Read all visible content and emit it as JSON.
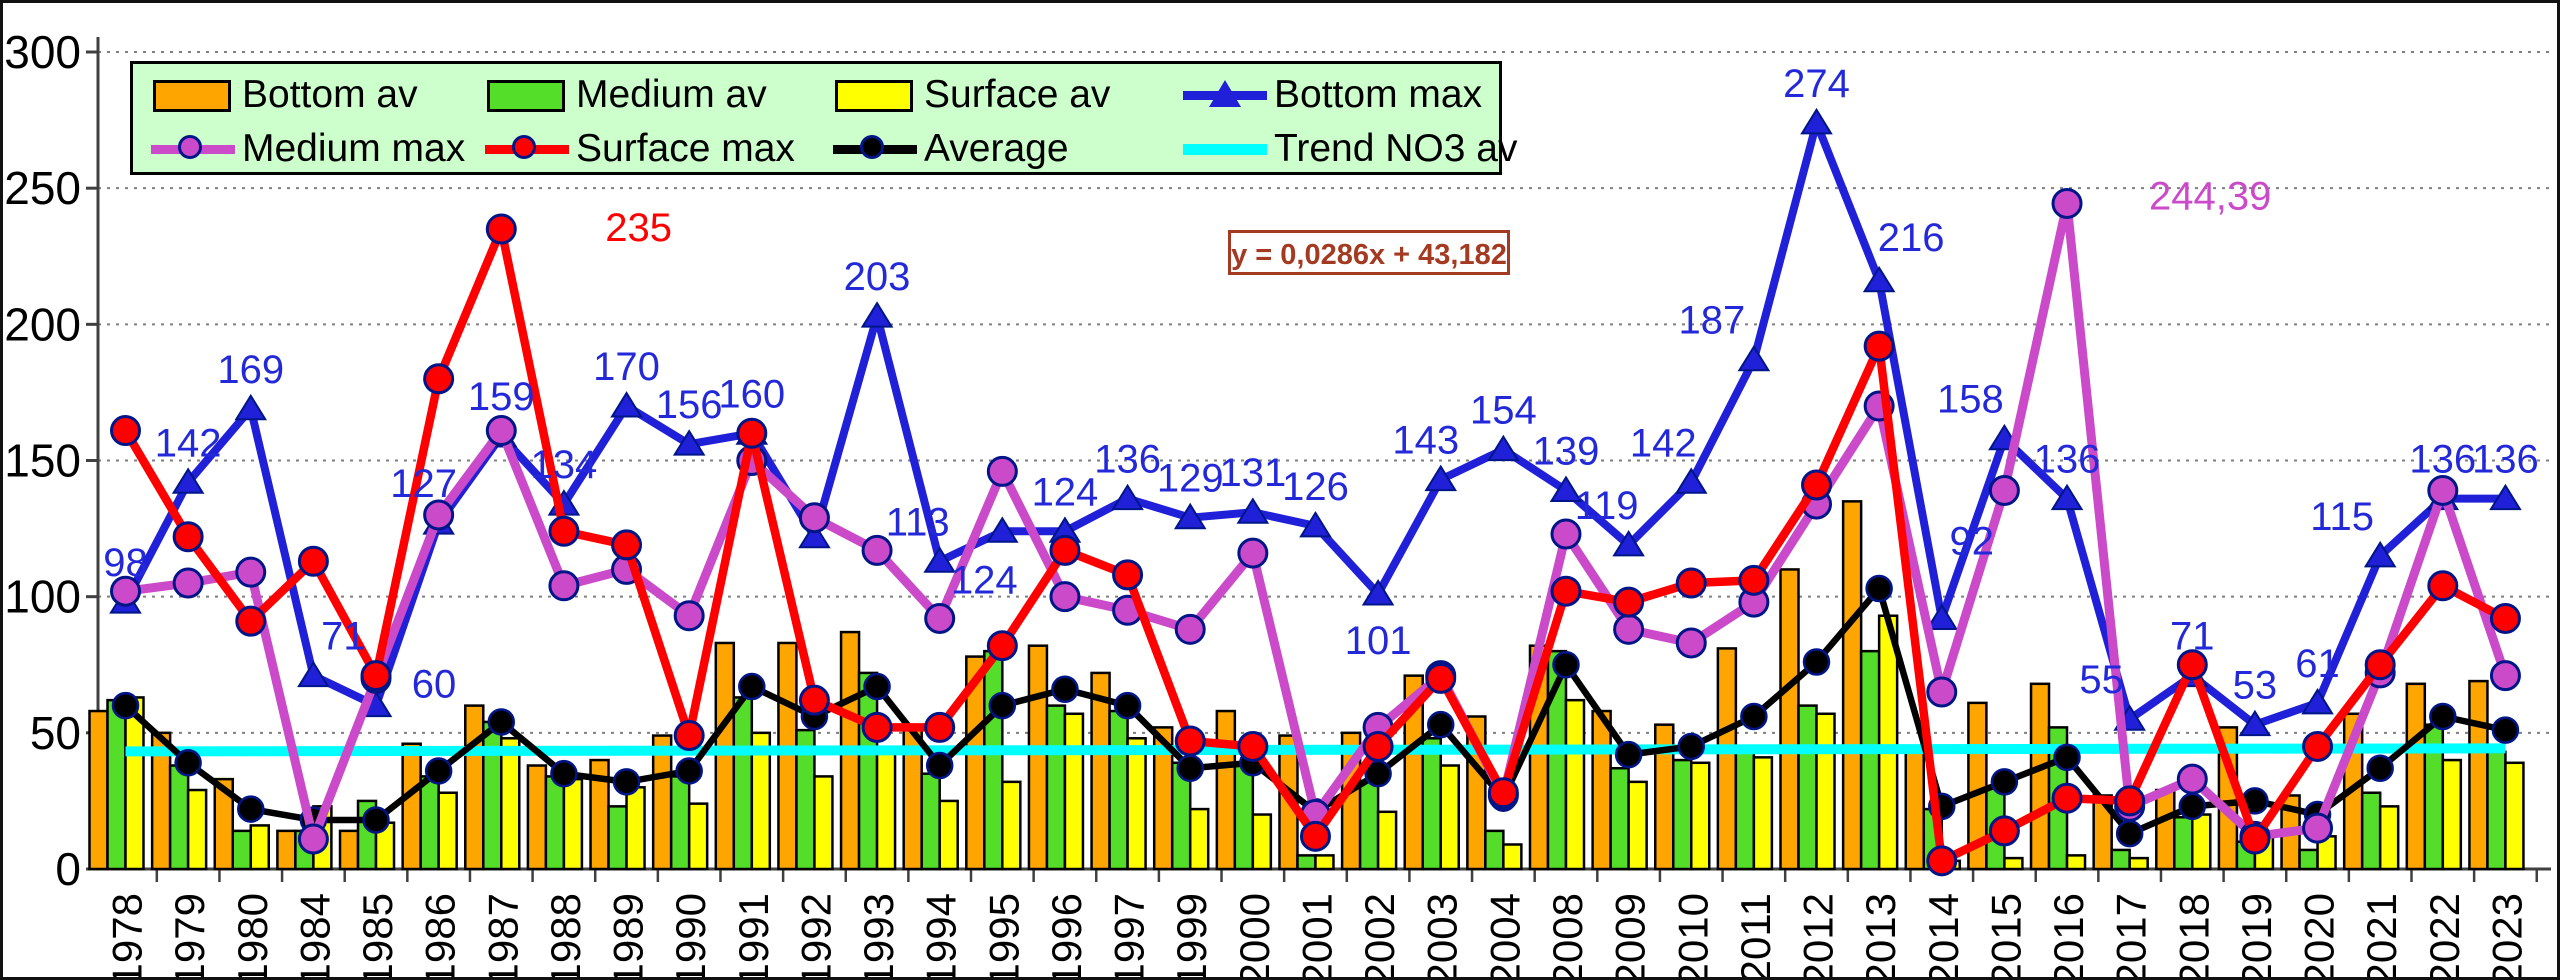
{
  "equation": {
    "text": "y = 0,0286x + 43,182"
  },
  "legend": {
    "items": [
      {
        "label": "Bottom av",
        "type": "bar",
        "color": "#FFA500"
      },
      {
        "label": "Medium av",
        "type": "bar",
        "color": "#54DE2A"
      },
      {
        "label": "Surface av",
        "type": "bar",
        "color": "#FFFF00"
      },
      {
        "label": "Bottom max",
        "type": "triangle",
        "color": "#2020D8"
      },
      {
        "label": "Medium max",
        "type": "circle",
        "color": "#CA4ACA"
      },
      {
        "label": "Surface max",
        "type": "circle",
        "color": "#FF0000"
      },
      {
        "label": "Average",
        "type": "circle",
        "color": "#000000"
      },
      {
        "label": "Trend NO3 av",
        "type": "plain",
        "color": "#00FFFF"
      }
    ]
  },
  "chart_data": {
    "type": "bar",
    "title": "",
    "xlabel": "",
    "ylabel": "",
    "ylim": [
      0,
      300
    ],
    "y_ticks": [
      0,
      50,
      100,
      150,
      200,
      250,
      300
    ],
    "grid": "dotted horizontal",
    "legend_position": "top-left inside",
    "categories": [
      "1978",
      "1979",
      "1980",
      "1984",
      "1985",
      "1986",
      "1987",
      "1988",
      "1989",
      "1990",
      "1991",
      "1992",
      "1993",
      "1994",
      "1995",
      "1996",
      "1997",
      "1999",
      "2000",
      "2001",
      "2002",
      "2003",
      "2004",
      "2008",
      "2009",
      "2010",
      "2011",
      "2012",
      "2013",
      "2014",
      "2015",
      "2016",
      "2017",
      "2018",
      "2019",
      "2020",
      "2021",
      "2022",
      "2023"
    ],
    "series": [
      {
        "name": "Bottom av",
        "type": "bar",
        "color": "#FFA500",
        "values": [
          58,
          50,
          33,
          14,
          14,
          46,
          60,
          38,
          40,
          49,
          83,
          83,
          87,
          52,
          78,
          82,
          72,
          52,
          58,
          49,
          50,
          71,
          56,
          82,
          58,
          53,
          81,
          110,
          135,
          45,
          61,
          68,
          27,
          29,
          52,
          27,
          57,
          68,
          69
        ]
      },
      {
        "name": "Medium av",
        "type": "bar",
        "color": "#54DE2A",
        "values": [
          62,
          38,
          14,
          14,
          25,
          34,
          54,
          34,
          23,
          34,
          63,
          51,
          72,
          35,
          80,
          60,
          58,
          39,
          39,
          5,
          32,
          48,
          14,
          80,
          37,
          40,
          45,
          60,
          80,
          22,
          30,
          52,
          7,
          19,
          10,
          7,
          28,
          53,
          43
        ]
      },
      {
        "name": "Surface av",
        "type": "bar",
        "color": "#FFFF00",
        "values": [
          63,
          29,
          16,
          23,
          17,
          28,
          48,
          33,
          30,
          24,
          50,
          34,
          44,
          25,
          32,
          57,
          48,
          22,
          20,
          5,
          21,
          38,
          9,
          62,
          32,
          39,
          41,
          57,
          93,
          3,
          4,
          5,
          4,
          20,
          12,
          12,
          23,
          40,
          39
        ]
      },
      {
        "name": "Bottom max",
        "type": "line",
        "marker": "triangle",
        "color": "#2020D8",
        "label_color": "#2329D9",
        "values": [
          98,
          142,
          169,
          71,
          60,
          127,
          159,
          134,
          170,
          156,
          160,
          122,
          203,
          113,
          124,
          124,
          136,
          129,
          131,
          126,
          101,
          143,
          154,
          139,
          119,
          142,
          187,
          274,
          216,
          92,
          158,
          136,
          55,
          71,
          53,
          61,
          115,
          136,
          136
        ],
        "labels": [
          "98",
          "142",
          "169",
          "71",
          "60",
          "127",
          "159",
          "134",
          "170",
          "156",
          "160",
          "",
          "203",
          "113",
          "124",
          "124",
          "136",
          "129",
          "131",
          "126",
          "101",
          "143",
          "154",
          "139",
          "119",
          "142",
          "187",
          "274",
          "216",
          "92",
          "158",
          "136",
          "55",
          "71",
          "53",
          "61",
          "115",
          "136",
          "136"
        ]
      },
      {
        "name": "Medium max",
        "type": "line",
        "marker": "circle",
        "color": "#CA4ACA",
        "label_color": "#CA4ACA",
        "values": [
          102,
          105,
          109,
          11,
          70,
          130,
          161,
          104,
          110,
          93,
          150,
          129,
          117,
          92,
          146,
          100,
          95,
          88,
          116,
          20,
          52,
          71,
          27,
          123,
          88,
          83,
          98,
          134,
          170,
          65,
          139,
          244.39,
          23,
          33,
          12,
          15,
          72,
          139,
          71
        ],
        "labels": [
          "",
          "",
          "",
          "",
          "",
          "",
          "",
          "",
          "",
          "",
          "",
          "",
          "",
          "",
          "",
          "",
          "",
          "",
          "",
          "",
          "",
          "",
          "",
          "",
          "",
          "",
          "",
          "",
          "",
          "",
          "",
          "244,39",
          "",
          "",
          "",
          "",
          "",
          "",
          ""
        ]
      },
      {
        "name": "Surface max",
        "type": "line",
        "marker": "circle",
        "color": "#FF0000",
        "label_color": "#FF0000",
        "values": [
          161,
          122,
          91,
          113,
          71,
          180,
          235,
          124,
          119,
          49,
          160,
          62,
          52,
          52,
          82,
          117,
          108,
          47,
          45,
          12,
          45,
          70,
          28,
          102,
          98,
          105,
          106,
          141,
          192,
          3,
          14,
          26,
          25,
          75,
          11,
          45,
          75,
          104,
          92
        ],
        "labels": [
          "",
          "",
          "",
          "",
          "",
          "",
          "235",
          "",
          "",
          "",
          "",
          "",
          "",
          "",
          "",
          "",
          "",
          "",
          "",
          "",
          "",
          "",
          "",
          "",
          "",
          "",
          "",
          "",
          "",
          "",
          "",
          "",
          "",
          "",
          "",
          "",
          "",
          "",
          ""
        ]
      },
      {
        "name": "Average",
        "type": "line",
        "marker": "circle",
        "color": "#000000",
        "values": [
          60,
          39,
          22,
          18,
          18,
          36,
          54,
          35,
          32,
          36,
          67,
          56,
          67,
          38,
          60,
          66,
          60,
          37,
          39,
          21,
          35,
          53,
          26,
          75,
          42,
          45,
          56,
          76,
          103,
          23,
          32,
          41,
          13,
          23,
          25,
          20,
          37,
          56,
          51
        ]
      },
      {
        "name": "Trend NO3 av",
        "type": "trend",
        "color": "#00FFFF",
        "start_value": 43.2,
        "end_value": 44.3
      }
    ]
  }
}
